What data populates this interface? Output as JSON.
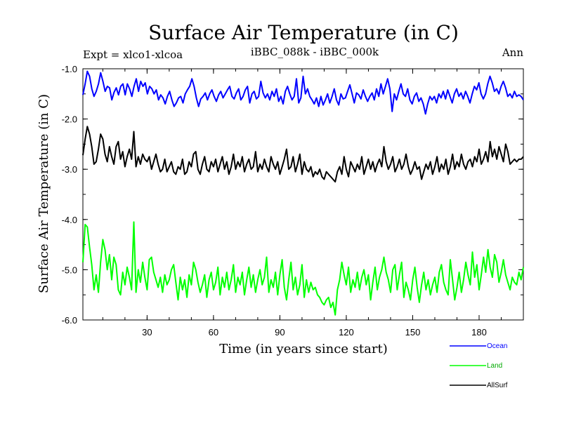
{
  "chart_data": {
    "type": "line",
    "title": "Surface Air Temperature (in C)",
    "subtitle_left": "Expt = xlco1-xlcoa",
    "subtitle_center": "iBBC_088k - iBBC_000k",
    "subtitle_right": "Ann",
    "xlabel": "Time (in years since start)",
    "ylabel": "Surface Air Temperature (in C)",
    "xlim": [
      1,
      200
    ],
    "ylim": [
      -6.0,
      -1.0
    ],
    "x_ticks": [
      30,
      60,
      90,
      120,
      150,
      180
    ],
    "x_tick_labels": [
      "30",
      "60",
      "90",
      "120",
      "150",
      "180"
    ],
    "y_ticks": [
      -1.0,
      -2.0,
      -3.0,
      -4.0,
      -5.0,
      -6.0
    ],
    "y_tick_labels": [
      "-1.0",
      "-2.0",
      "-3.0",
      "-4.0",
      "-5.0",
      "-6.0"
    ],
    "legend_position": "bottom-right",
    "series": [
      {
        "name": "Ocean",
        "color": "#0000ff",
        "values": [
          -1.52,
          -1.3,
          -1.05,
          -1.15,
          -1.4,
          -1.55,
          -1.45,
          -1.3,
          -1.08,
          -1.25,
          -1.45,
          -1.35,
          -1.38,
          -1.62,
          -1.47,
          -1.38,
          -1.52,
          -1.35,
          -1.3,
          -1.52,
          -1.3,
          -1.4,
          -1.55,
          -1.35,
          -1.2,
          -1.45,
          -1.25,
          -1.35,
          -1.28,
          -1.5,
          -1.35,
          -1.4,
          -1.5,
          -1.42,
          -1.62,
          -1.52,
          -1.58,
          -1.7,
          -1.55,
          -1.45,
          -1.62,
          -1.75,
          -1.68,
          -1.58,
          -1.55,
          -1.68,
          -1.5,
          -1.42,
          -1.35,
          -1.2,
          -1.35,
          -1.58,
          -1.75,
          -1.6,
          -1.55,
          -1.48,
          -1.62,
          -1.5,
          -1.42,
          -1.55,
          -1.65,
          -1.52,
          -1.45,
          -1.58,
          -1.5,
          -1.42,
          -1.35,
          -1.55,
          -1.6,
          -1.48,
          -1.4,
          -1.62,
          -1.55,
          -1.42,
          -1.35,
          -1.68,
          -1.5,
          -1.45,
          -1.6,
          -1.55,
          -1.25,
          -1.48,
          -1.58,
          -1.5,
          -1.62,
          -1.45,
          -1.55,
          -1.4,
          -1.65,
          -1.55,
          -1.7,
          -1.45,
          -1.35,
          -1.5,
          -1.62,
          -1.55,
          -1.2,
          -1.68,
          -1.58,
          -1.15,
          -1.5,
          -1.4,
          -1.55,
          -1.62,
          -1.7,
          -1.58,
          -1.75,
          -1.55,
          -1.72,
          -1.62,
          -1.5,
          -1.68,
          -1.55,
          -1.4,
          -1.62,
          -1.72,
          -1.5,
          -1.6,
          -1.58,
          -1.45,
          -1.32,
          -1.5,
          -1.68,
          -1.48,
          -1.52,
          -1.6,
          -1.42,
          -1.55,
          -1.65,
          -1.55,
          -1.48,
          -1.62,
          -1.4,
          -1.55,
          -1.3,
          -1.5,
          -1.35,
          -1.2,
          -1.4,
          -1.85,
          -1.5,
          -1.62,
          -1.45,
          -1.3,
          -1.5,
          -1.55,
          -1.4,
          -1.62,
          -1.7,
          -1.55,
          -1.48,
          -1.65,
          -1.58,
          -1.7,
          -1.9,
          -1.7,
          -1.55,
          -1.62,
          -1.55,
          -1.68,
          -1.5,
          -1.58,
          -1.45,
          -1.6,
          -1.42,
          -1.55,
          -1.68,
          -1.5,
          -1.4,
          -1.55,
          -1.48,
          -1.6,
          -1.45,
          -1.55,
          -1.68,
          -1.5,
          -1.35,
          -1.42,
          -1.28,
          -1.5,
          -1.6,
          -1.5,
          -1.3,
          -1.15,
          -1.28,
          -1.45,
          -1.4,
          -1.5,
          -1.35,
          -1.25,
          -1.38,
          -1.55,
          -1.5,
          -1.58,
          -1.45,
          -1.55,
          -1.52,
          -1.55,
          -1.62
        ],
        "label_color": "#0000ff"
      },
      {
        "name": "Land",
        "color": "#00ff00",
        "values": [
          -4.85,
          -4.1,
          -4.15,
          -4.55,
          -4.9,
          -5.4,
          -5.1,
          -5.45,
          -4.85,
          -4.4,
          -4.6,
          -5.0,
          -4.7,
          -5.2,
          -4.75,
          -4.9,
          -5.4,
          -5.5,
          -5.05,
          -5.3,
          -4.95,
          -5.15,
          -5.4,
          -4.05,
          -5.45,
          -5.0,
          -5.25,
          -4.85,
          -5.15,
          -5.4,
          -4.8,
          -4.75,
          -5.05,
          -5.2,
          -5.35,
          -5.15,
          -5.45,
          -5.1,
          -5.3,
          -5.2,
          -5.0,
          -4.9,
          -5.25,
          -5.6,
          -5.15,
          -5.4,
          -5.2,
          -5.55,
          -5.1,
          -5.3,
          -4.85,
          -5.0,
          -5.25,
          -5.45,
          -5.3,
          -5.1,
          -5.55,
          -5.2,
          -5.05,
          -5.4,
          -5.25,
          -4.95,
          -5.5,
          -5.15,
          -5.35,
          -5.05,
          -5.4,
          -5.2,
          -4.9,
          -5.45,
          -5.15,
          -5.3,
          -5.05,
          -5.5,
          -5.2,
          -4.95,
          -5.35,
          -5.1,
          -5.45,
          -5.2,
          -5.0,
          -5.3,
          -5.15,
          -4.75,
          -5.45,
          -5.2,
          -5.35,
          -5.05,
          -5.5,
          -5.1,
          -4.8,
          -5.35,
          -5.6,
          -5.2,
          -4.85,
          -5.4,
          -5.15,
          -5.5,
          -5.3,
          -4.9,
          -5.55,
          -5.2,
          -5.45,
          -5.25,
          -5.4,
          -5.35,
          -5.5,
          -5.55,
          -5.65,
          -5.7,
          -5.6,
          -5.55,
          -5.75,
          -5.65,
          -5.9,
          -5.4,
          -5.2,
          -4.85,
          -5.1,
          -5.3,
          -4.95,
          -5.45,
          -5.2,
          -5.35,
          -5.05,
          -5.4,
          -5.15,
          -5.0,
          -5.3,
          -5.1,
          -5.6,
          -5.25,
          -4.95,
          -5.4,
          -5.15,
          -5.0,
          -4.75,
          -5.05,
          -5.2,
          -5.45,
          -5.0,
          -4.9,
          -5.4,
          -5.1,
          -4.85,
          -5.55,
          -5.25,
          -5.4,
          -5.6,
          -5.2,
          -4.95,
          -5.35,
          -5.65,
          -5.3,
          -5.05,
          -5.4,
          -5.2,
          -5.5,
          -5.3,
          -5.15,
          -5.45,
          -5.05,
          -4.9,
          -5.25,
          -5.4,
          -5.5,
          -4.8,
          -5.2,
          -5.6,
          -5.35,
          -5.05,
          -5.45,
          -5.2,
          -4.85,
          -5.1,
          -5.3,
          -4.65,
          -5.15,
          -4.9,
          -5.4,
          -5.1,
          -4.75,
          -5.05,
          -4.6,
          -4.95,
          -5.15,
          -4.7,
          -4.85,
          -5.25,
          -5.05,
          -4.8,
          -5.1,
          -5.25,
          -5.4,
          -5.15,
          -5.25,
          -5.3,
          -5.05,
          -5.2,
          -4.95
        ],
        "label_color": "#00aa00"
      },
      {
        "name": "AllSurf",
        "color": "#000000",
        "values": [
          -2.72,
          -2.4,
          -2.15,
          -2.3,
          -2.55,
          -2.9,
          -2.85,
          -2.6,
          -2.3,
          -2.4,
          -2.7,
          -2.85,
          -2.55,
          -2.75,
          -2.9,
          -2.55,
          -2.45,
          -2.8,
          -2.65,
          -2.95,
          -2.75,
          -2.6,
          -2.8,
          -2.25,
          -2.95,
          -2.75,
          -2.9,
          -2.7,
          -2.8,
          -2.85,
          -2.75,
          -3.0,
          -2.85,
          -2.7,
          -2.9,
          -3.05,
          -3.0,
          -2.8,
          -3.05,
          -2.95,
          -2.85,
          -3.05,
          -3.1,
          -2.95,
          -3.0,
          -2.8,
          -3.1,
          -3.05,
          -2.85,
          -2.95,
          -2.7,
          -2.65,
          -3.0,
          -3.1,
          -2.9,
          -2.75,
          -3.0,
          -3.05,
          -2.85,
          -2.95,
          -2.8,
          -3.05,
          -2.9,
          -2.75,
          -3.0,
          -2.85,
          -3.1,
          -2.95,
          -2.7,
          -3.0,
          -2.85,
          -2.95,
          -2.75,
          -3.05,
          -2.9,
          -2.8,
          -3.0,
          -2.95,
          -2.65,
          -3.05,
          -2.9,
          -3.0,
          -2.8,
          -2.95,
          -3.05,
          -2.75,
          -2.9,
          -3.0,
          -2.85,
          -3.1,
          -2.95,
          -2.8,
          -2.6,
          -3.0,
          -2.95,
          -2.75,
          -3.05,
          -2.9,
          -2.7,
          -3.1,
          -2.85,
          -3.0,
          -3.05,
          -2.95,
          -3.15,
          -3.05,
          -3.1,
          -3.0,
          -3.15,
          -3.2,
          -3.05,
          -3.1,
          -3.15,
          -3.2,
          -3.25,
          -3.05,
          -2.95,
          -3.1,
          -2.75,
          -3.0,
          -3.15,
          -2.85,
          -2.95,
          -3.05,
          -2.9,
          -3.0,
          -2.75,
          -3.1,
          -2.95,
          -2.8,
          -3.0,
          -2.85,
          -3.05,
          -2.9,
          -2.8,
          -2.95,
          -2.55,
          -2.85,
          -3.0,
          -2.9,
          -2.75,
          -3.05,
          -2.95,
          -2.8,
          -3.0,
          -2.9,
          -2.7,
          -2.95,
          -3.1,
          -3.0,
          -2.85,
          -3.0,
          -2.95,
          -3.2,
          -3.05,
          -2.9,
          -3.0,
          -2.85,
          -3.1,
          -2.95,
          -2.75,
          -3.05,
          -2.9,
          -3.0,
          -2.8,
          -3.1,
          -2.95,
          -2.7,
          -3.0,
          -2.85,
          -2.95,
          -2.7,
          -2.9,
          -3.0,
          -2.85,
          -2.8,
          -2.95,
          -2.75,
          -2.85,
          -2.6,
          -2.9,
          -2.8,
          -2.65,
          -2.85,
          -2.45,
          -2.75,
          -2.6,
          -2.8,
          -2.55,
          -2.7,
          -2.85,
          -2.5,
          -2.65,
          -2.9,
          -2.85,
          -2.8,
          -2.85,
          -2.8,
          -2.8,
          -2.75
        ],
        "label_color": "#000000"
      }
    ]
  }
}
